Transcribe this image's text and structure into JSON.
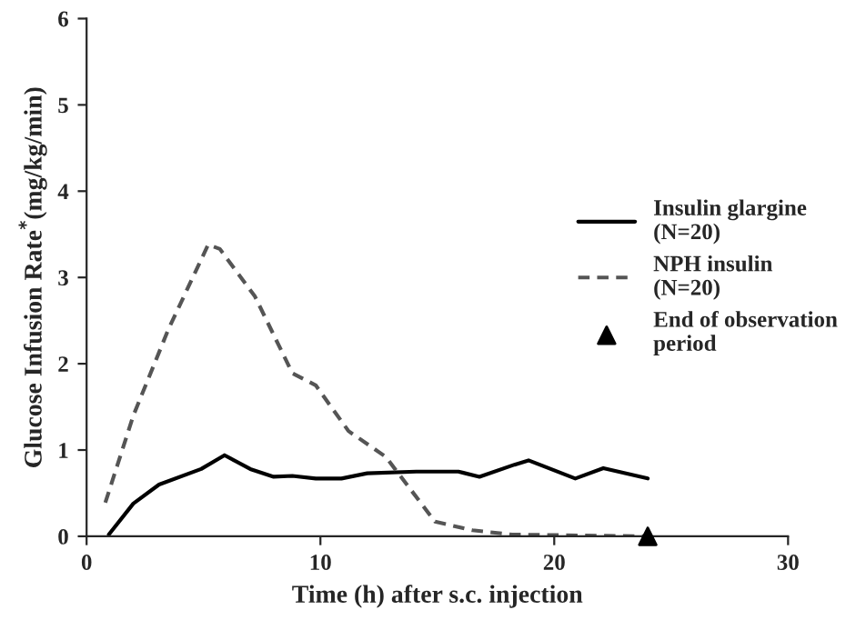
{
  "chart_data": {
    "type": "line",
    "xlabel": "Time (h) after s.c. injection",
    "ylabel": "Glucose Infusion Rate$^{*}$(mg/kg/min)",
    "xlim": [
      0,
      30
    ],
    "xticks": [
      0,
      10,
      20,
      30
    ],
    "ylim": [
      0,
      6
    ],
    "yticks": [
      0,
      1,
      2,
      3,
      4,
      5,
      6
    ],
    "grid": false,
    "legend": "right",
    "series": [
      {
        "name": "Insulin glargine\n(N=20)",
        "color": "#000000",
        "line_style": "solid",
        "marker": "none",
        "x": [
          0.95,
          2,
          3.1,
          4.9,
          5.9,
          7,
          8,
          8.8,
          9.8,
          10.9,
          12,
          14.1,
          15.9,
          16.8,
          18.3,
          18.9,
          20.9,
          22.1,
          24
        ],
        "values": [
          0.02,
          0.38,
          0.6,
          0.78,
          0.94,
          0.78,
          0.69,
          0.7,
          0.67,
          0.67,
          0.73,
          0.75,
          0.75,
          0.69,
          0.83,
          0.88,
          0.67,
          0.79,
          0.67
        ]
      },
      {
        "name": "NPH insulin\n(N=20)",
        "color": "#555555",
        "line_style": "dashed",
        "marker": "none",
        "x": [
          0.8,
          2,
          3.5,
          5.2,
          5.7,
          7.2,
          8.8,
          9.8,
          11.2,
          12.8,
          14.9,
          16.5,
          18.2,
          21,
          24
        ],
        "values": [
          0.39,
          1.4,
          2.4,
          3.38,
          3.33,
          2.78,
          1.89,
          1.75,
          1.22,
          0.92,
          0.17,
          0.07,
          0.02,
          0.01,
          0
        ]
      },
      {
        "name": "End of observation\nperiod",
        "type": "scatter",
        "color": "#000000",
        "marker": "triangle",
        "x": [
          24
        ],
        "values": [
          0
        ]
      }
    ]
  }
}
